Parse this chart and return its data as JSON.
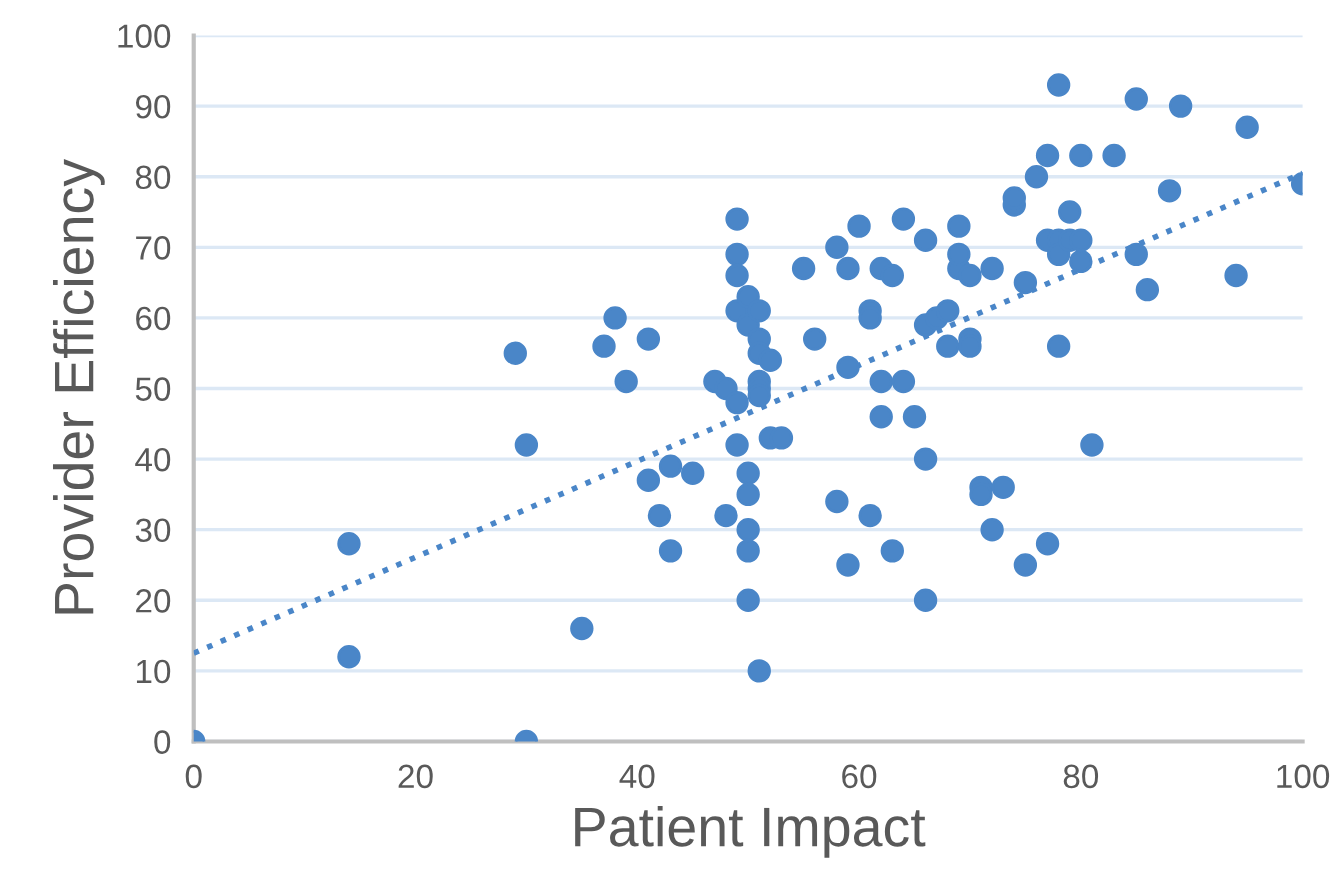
{
  "chart_data": {
    "type": "scatter",
    "xlabel": "Patient Impact",
    "ylabel": "Provider Efficiency",
    "xlim": [
      0,
      100
    ],
    "ylim": [
      0,
      100
    ],
    "xticks": [
      0,
      20,
      40,
      60,
      80,
      100
    ],
    "yticks": [
      0,
      10,
      20,
      30,
      40,
      50,
      60,
      70,
      80,
      90,
      100
    ],
    "grid": "y",
    "series": [
      {
        "marker": "circle",
        "color": "#4a86c8",
        "x": [
          0,
          14,
          14,
          29,
          30,
          30,
          35,
          37,
          38,
          39,
          41,
          41,
          42,
          43,
          43,
          45,
          47,
          48,
          48,
          49,
          49,
          49,
          49,
          49,
          49,
          50,
          50,
          50,
          50,
          50,
          50,
          50,
          51,
          51,
          51,
          51,
          51,
          51,
          51,
          52,
          52,
          53,
          55,
          56,
          58,
          58,
          59,
          59,
          59,
          60,
          61,
          61,
          61,
          62,
          62,
          62,
          63,
          63,
          64,
          64,
          65,
          66,
          66,
          66,
          66,
          67,
          68,
          68,
          69,
          69,
          69,
          70,
          70,
          70,
          71,
          71,
          72,
          72,
          73,
          74,
          74,
          75,
          75,
          76,
          77,
          77,
          77,
          78,
          78,
          78,
          78,
          79,
          79,
          80,
          80,
          80,
          81,
          83,
          85,
          85,
          86,
          88,
          89,
          94,
          95,
          100
        ],
        "values": [
          0,
          28,
          12,
          55,
          42,
          0,
          16,
          56,
          60,
          51,
          37,
          57,
          32,
          27,
          39,
          38,
          51,
          50,
          32,
          74,
          69,
          66,
          61,
          48,
          42,
          63,
          59,
          38,
          35,
          30,
          27,
          20,
          61,
          57,
          55,
          51,
          50,
          49,
          10,
          54,
          43,
          43,
          67,
          57,
          70,
          34,
          53,
          67,
          25,
          73,
          61,
          60,
          32,
          67,
          51,
          46,
          66,
          27,
          74,
          51,
          46,
          71,
          59,
          40,
          20,
          60,
          61,
          56,
          73,
          67,
          69,
          66,
          57,
          56,
          36,
          35,
          67,
          30,
          36,
          76,
          77,
          65,
          25,
          80,
          83,
          71,
          28,
          93,
          71,
          69,
          56,
          75,
          71,
          83,
          68,
          71,
          42,
          83,
          91,
          69,
          64,
          78,
          90,
          66,
          87,
          79
        ]
      },
      {
        "type": "line",
        "marker": "none",
        "line_style": "dotted",
        "color": "#4a86c8",
        "x": [
          0,
          100
        ],
        "values": [
          12.5,
          80.5
        ]
      }
    ]
  }
}
